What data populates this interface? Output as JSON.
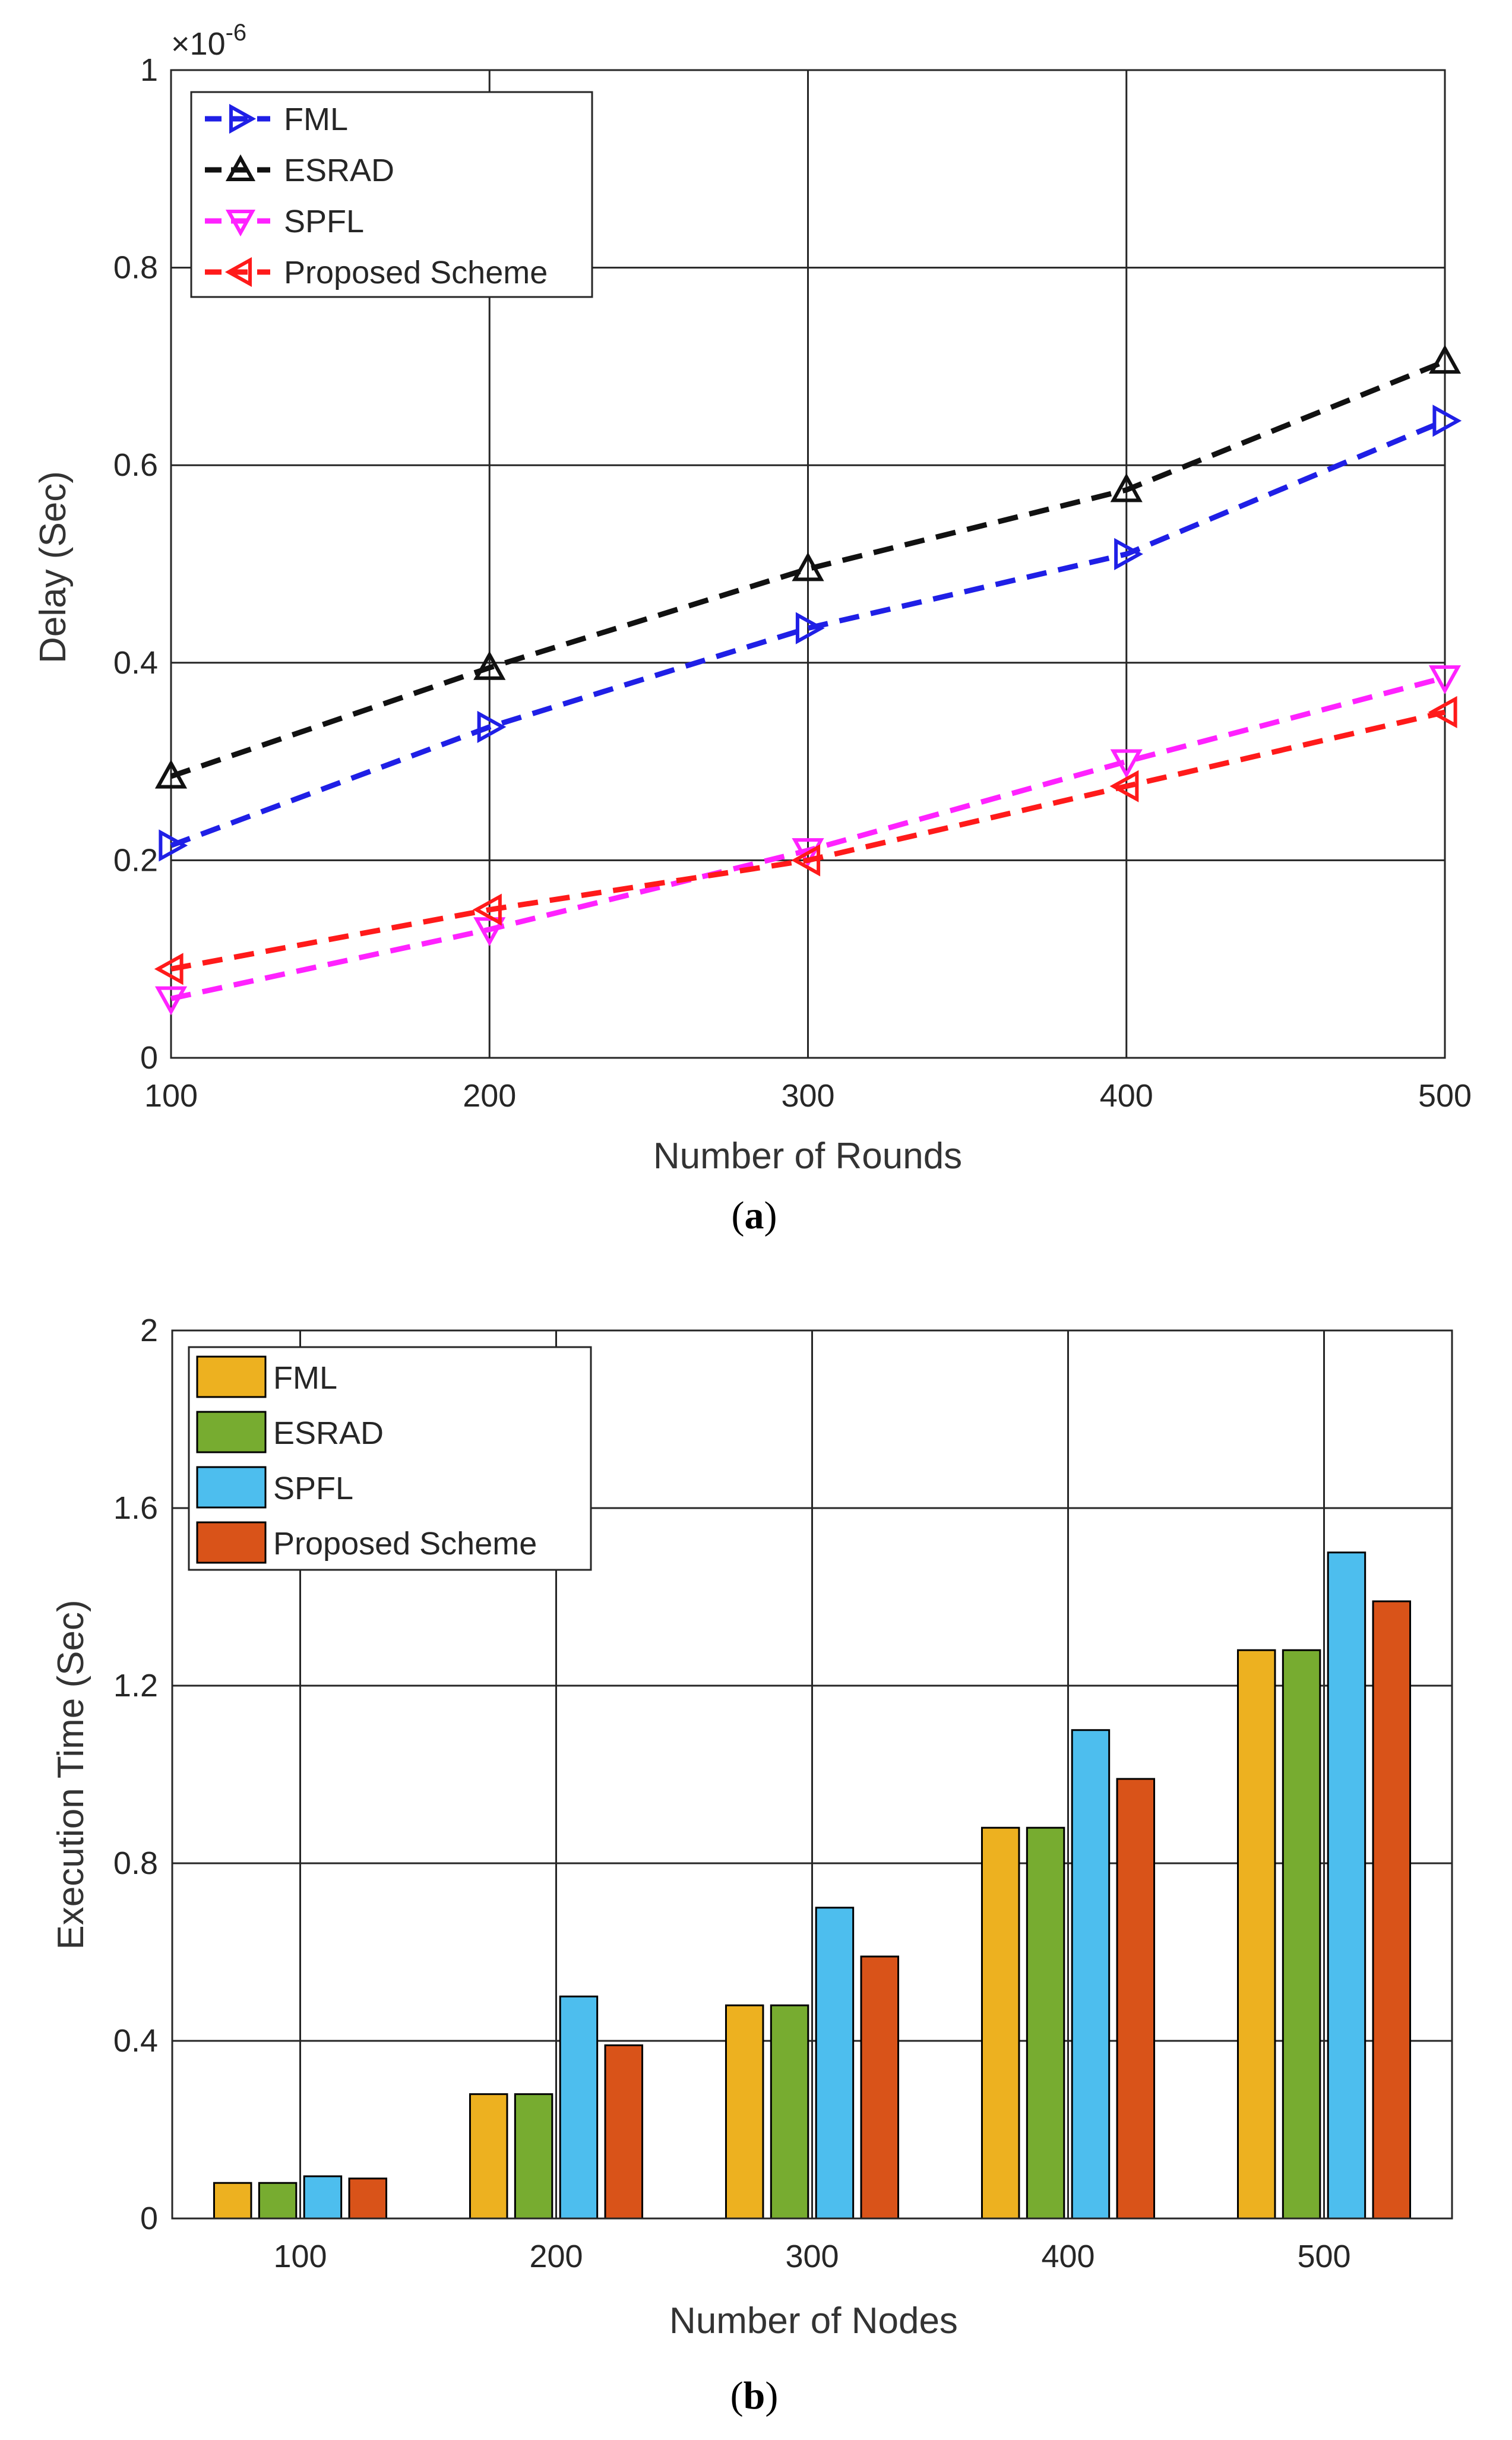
{
  "chart_data": [
    {
      "type": "line",
      "panel_label": "a",
      "title": "",
      "xlabel": "Number of Rounds",
      "ylabel": "Delay (Sec)",
      "exponent_label": "×10",
      "exponent_power": "-6",
      "x": [
        100,
        200,
        300,
        400,
        500
      ],
      "xlim": [
        100,
        500
      ],
      "ylim": [
        0,
        1
      ],
      "xticks": [
        "100",
        "200",
        "300",
        "400",
        "500"
      ],
      "yticks": [
        "0",
        "0.2",
        "0.4",
        "0.6",
        "0.8",
        "1"
      ],
      "ytick_values": [
        0,
        0.2,
        0.4,
        0.6,
        0.8,
        1
      ],
      "grid": true,
      "legend_position": "top-left",
      "series": [
        {
          "name": "FML",
          "color": "#1f1fe6",
          "marker": "triangle-right",
          "values": [
            0.215,
            0.335,
            0.435,
            0.51,
            0.645
          ]
        },
        {
          "name": "ESRAD",
          "color": "#111111",
          "marker": "triangle-up",
          "values": [
            0.285,
            0.395,
            0.495,
            0.575,
            0.705
          ]
        },
        {
          "name": "SPFL",
          "color": "#ff22ff",
          "marker": "triangle-down",
          "values": [
            0.06,
            0.13,
            0.21,
            0.3,
            0.385
          ]
        },
        {
          "name": "Proposed Scheme",
          "color": "#ff1a1a",
          "marker": "triangle-left",
          "values": [
            0.09,
            0.15,
            0.2,
            0.275,
            0.35
          ]
        }
      ]
    },
    {
      "type": "bar",
      "panel_label": "b",
      "title": "",
      "xlabel": "Number of Nodes",
      "ylabel": "Execution Time (Sec)",
      "categories": [
        "100",
        "200",
        "300",
        "400",
        "500"
      ],
      "ylim": [
        0,
        2
      ],
      "yticks": [
        "0",
        "0.4",
        "0.8",
        "1.2",
        "1.6",
        "2"
      ],
      "ytick_values": [
        0,
        0.4,
        0.8,
        1.2,
        1.6,
        2
      ],
      "grid": true,
      "legend_position": "top-left",
      "series": [
        {
          "name": "FML",
          "color": "#EDB120",
          "values": [
            0.08,
            0.28,
            0.48,
            0.88,
            1.28
          ]
        },
        {
          "name": "ESRAD",
          "color": "#77AC30",
          "values": [
            0.08,
            0.28,
            0.48,
            0.88,
            1.28
          ]
        },
        {
          "name": "SPFL",
          "color": "#4DBEEE",
          "values": [
            0.095,
            0.5,
            0.7,
            1.1,
            1.5
          ]
        },
        {
          "name": "Proposed Scheme",
          "color": "#D95319",
          "values": [
            0.09,
            0.39,
            0.59,
            0.99,
            1.39
          ]
        }
      ]
    }
  ],
  "captions": {
    "a": "a",
    "b": "b"
  }
}
